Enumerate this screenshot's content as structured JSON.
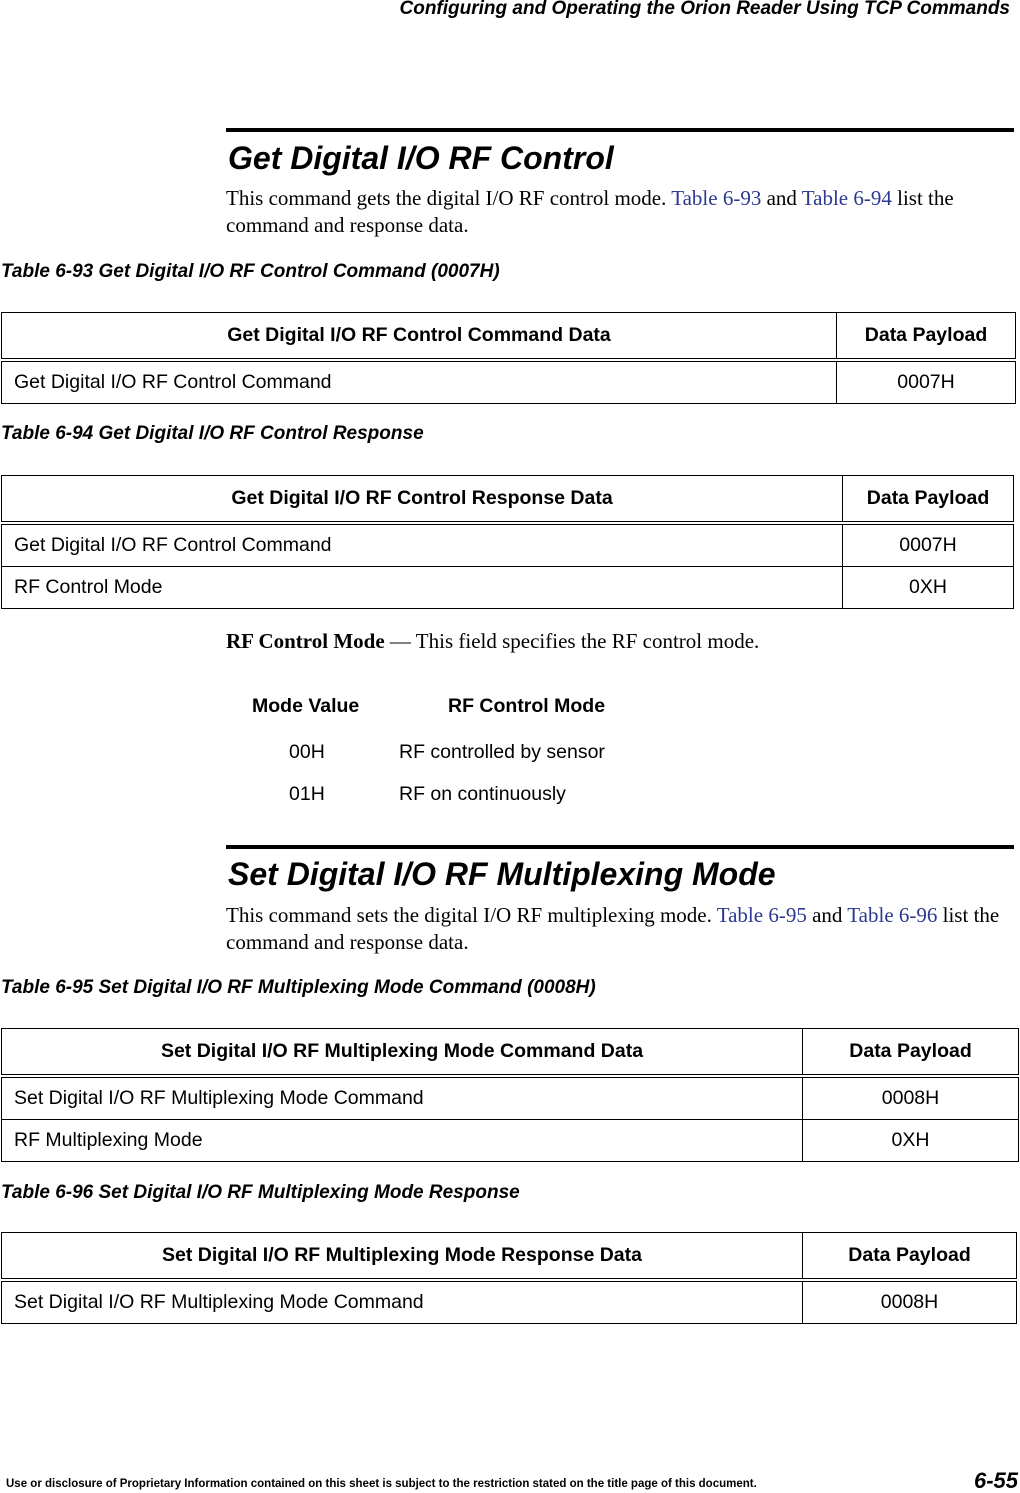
{
  "running_header": "Configuring and Operating the Orion Reader Using TCP Commands",
  "section1": {
    "title": "Get Digital I/O RF Control",
    "body_pre": "This command gets the digital I/O RF control mode. ",
    "link1": "Table 6-93",
    "mid": " and ",
    "link2": "Table 6-94",
    "body_post": " list the command and response data."
  },
  "table93": {
    "caption": "Table 6-93  Get Digital I/O RF Control Command (0007H)",
    "headers": [
      "Get Digital I/O RF Control Command Data",
      "Data Payload"
    ],
    "rows": [
      [
        "Get Digital I/O RF Control Command",
        "0007H"
      ]
    ]
  },
  "table94": {
    "caption": "Table 6-94  Get Digital I/O RF Control Response",
    "headers": [
      "Get Digital I/O RF Control Response Data",
      "Data Payload"
    ],
    "rows": [
      [
        "Get Digital I/O RF Control Command",
        "0007H"
      ],
      [
        "RF Control Mode",
        "0XH"
      ]
    ]
  },
  "rf_mode": {
    "term": "RF Control Mode",
    "desc": " — This field specifies the RF control mode.",
    "headers": [
      "Mode Value",
      "RF Control Mode"
    ],
    "rows": [
      [
        "00H",
        "RF controlled by sensor"
      ],
      [
        "01H",
        "RF on continuously"
      ]
    ]
  },
  "section2": {
    "title": "Set Digital I/O RF Multiplexing Mode",
    "body_pre": "This command sets the digital I/O RF multiplexing mode. ",
    "link1": "Table 6-95",
    "mid": " and ",
    "link2": "Table 6-96",
    "body_post": " list the command and response data."
  },
  "table95": {
    "caption": "Table 6-95  Set Digital I/O RF Multiplexing Mode Command (0008H)",
    "headers": [
      "Set Digital I/O RF Multiplexing Mode Command Data",
      "Data Payload"
    ],
    "rows": [
      [
        "Set Digital I/O RF Multiplexing Mode Command",
        "0008H"
      ],
      [
        "RF Multiplexing Mode",
        "0XH"
      ]
    ]
  },
  "table96": {
    "caption": "Table 6-96  Set Digital I/O RF Multiplexing Mode Response",
    "headers": [
      "Set Digital I/O RF Multiplexing Mode Response Data",
      "Data Payload"
    ],
    "rows": [
      [
        "Set Digital I/O RF Multiplexing Mode Command",
        "0008H"
      ]
    ]
  },
  "footer": {
    "notice": "Use or disclosure of Proprietary Information contained on this sheet is subject to the restriction stated on the title page of this document.",
    "page": "6-55"
  }
}
